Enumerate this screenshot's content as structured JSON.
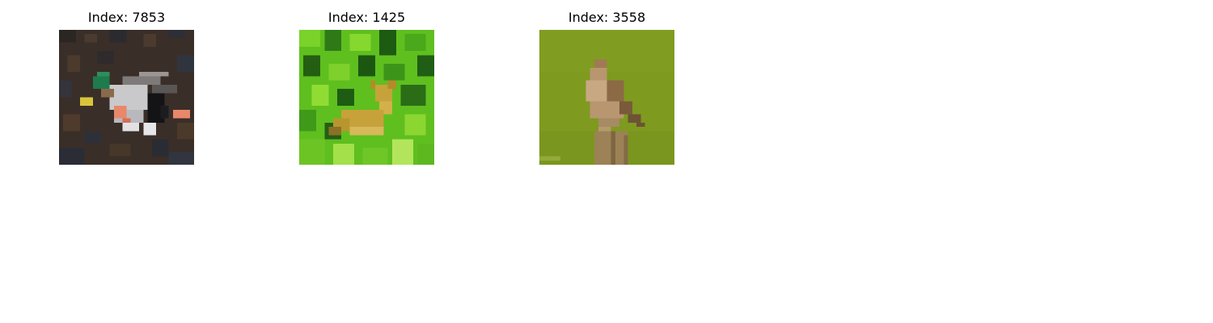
{
  "panels": [
    {
      "title": "Index: 7853",
      "image": "pixelated-duck-photo",
      "colors": {
        "background": "#3a2e28",
        "body": "#c9c9cb",
        "head": "#1f7a4c",
        "accent": "#e9876a"
      }
    },
    {
      "title": "Index: 1425",
      "image": "pixelated-deer-in-foliage-photo",
      "colors": {
        "background": "#5fbf1f",
        "dark": "#1d5a12",
        "subject": "#c7a23a"
      }
    },
    {
      "title": "Index: 3558",
      "image": "pixelated-bird-on-post-photo",
      "colors": {
        "background": "#7e9a1f",
        "bird": "#b89670",
        "post": "#9c8256"
      }
    }
  ]
}
